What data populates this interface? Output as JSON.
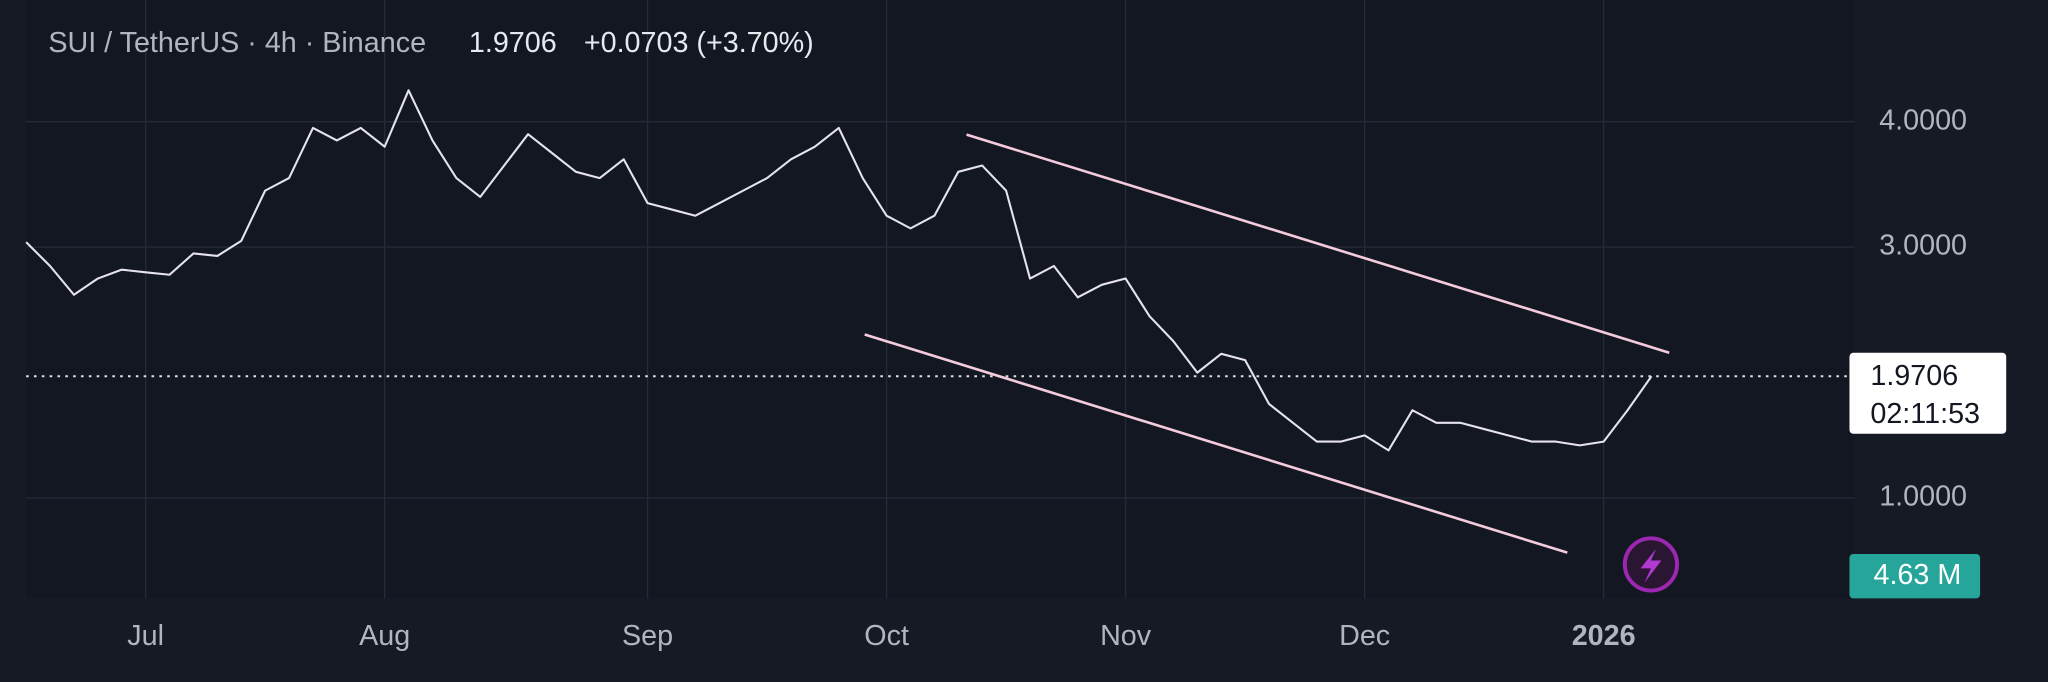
{
  "header": {
    "symbol": "SUI / TetherUS · 4h · Binance",
    "change": "+0.0703 (+3.70%)"
  },
  "chart_data": {
    "type": "line",
    "categories": [
      null,
      null,
      null,
      null,
      null,
      "Jul",
      null,
      null,
      null,
      null,
      null,
      null,
      null,
      null,
      null,
      "Aug",
      null,
      null,
      null,
      null,
      null,
      null,
      null,
      null,
      null,
      null,
      "Sep",
      null,
      null,
      null,
      null,
      null,
      null,
      null,
      null,
      null,
      "Oct",
      null,
      null,
      null,
      null,
      null,
      null,
      null,
      null,
      null,
      "Nov",
      null,
      null,
      null,
      null,
      null,
      null,
      null,
      null,
      null,
      "Dec",
      null,
      null,
      null,
      null,
      null,
      null,
      null,
      null,
      null,
      "2026",
      null,
      null
    ],
    "values": [
      3.04,
      2.85,
      2.62,
      2.75,
      2.82,
      2.8,
      2.78,
      2.95,
      2.93,
      3.05,
      3.45,
      3.55,
      3.95,
      3.85,
      3.95,
      3.8,
      4.25,
      3.85,
      3.55,
      3.4,
      3.65,
      3.9,
      3.75,
      3.6,
      3.55,
      3.7,
      3.35,
      3.3,
      3.25,
      3.35,
      3.45,
      3.55,
      3.7,
      3.8,
      3.95,
      3.55,
      3.25,
      3.15,
      3.25,
      3.6,
      3.65,
      3.45,
      2.75,
      2.85,
      2.6,
      2.7,
      2.75,
      2.45,
      2.25,
      2.0,
      2.15,
      2.1,
      1.75,
      1.6,
      1.45,
      1.45,
      1.5,
      1.38,
      1.7,
      1.6,
      1.6,
      1.55,
      1.5,
      1.45,
      1.45,
      1.42,
      1.45,
      1.7,
      1.9706
    ],
    "color": "#e6e2f0",
    "ylim": [
      0.2,
      4.97
    ],
    "yticks": [
      {
        "value": 1,
        "label": "1.0000"
      },
      {
        "value": 3,
        "label": "3.0000"
      },
      {
        "value": 4,
        "label": "4.0000"
      }
    ],
    "grid": true,
    "last_price": {
      "value": 1.9706,
      "label": "1.9706"
    },
    "countdown": "02:11:53",
    "volume_label": "4.63 M"
  }
}
